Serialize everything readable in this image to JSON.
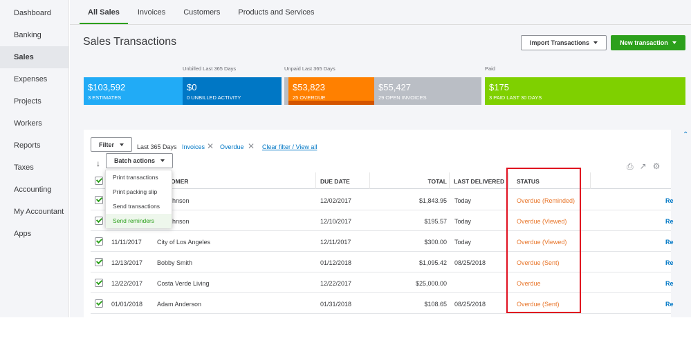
{
  "sidebar": {
    "items": [
      {
        "label": "Dashboard"
      },
      {
        "label": "Banking"
      },
      {
        "label": "Sales"
      },
      {
        "label": "Expenses"
      },
      {
        "label": "Projects"
      },
      {
        "label": "Workers"
      },
      {
        "label": "Reports"
      },
      {
        "label": "Taxes"
      },
      {
        "label": "Accounting"
      },
      {
        "label": "My Accountant"
      },
      {
        "label": "Apps"
      }
    ],
    "active": "Sales"
  },
  "tabs": [
    {
      "label": "All Sales"
    },
    {
      "label": "Invoices"
    },
    {
      "label": "Customers"
    },
    {
      "label": "Products and Services"
    }
  ],
  "page": {
    "title": "Sales Transactions",
    "import_label": "Import Transactions",
    "new_label": "New transaction"
  },
  "money_bar": {
    "unbilled_label": "Unbilled Last 365 Days",
    "unpaid_label": "Unpaid Last 365 Days",
    "paid_label": "Paid",
    "estimates_amount": "$103,592",
    "estimates_sub": "3 ESTIMATES",
    "unbilled_amount": "$0",
    "unbilled_sub": "0 UNBILLED ACTIVITY",
    "overdue_amount": "$53,823",
    "overdue_sub": "25 OVERDUE",
    "open_amount": "$55,427",
    "open_sub": "29 OPEN INVOICES",
    "paid_amount": "$175",
    "paid_sub": "3 PAID LAST 30 DAYS",
    "colors": {
      "estimates": "#21abf6",
      "unbilled": "#0077c5",
      "overdue": "#ff8000",
      "open": "#babec5",
      "paid": "#7fd000"
    }
  },
  "filters": {
    "filter_label": "Filter",
    "range": "Last 365 Days",
    "chip_invoices": "Invoices",
    "chip_overdue": "Overdue",
    "clear_label": "Clear filter / View all"
  },
  "batch": {
    "label": "Batch actions",
    "menu": [
      {
        "label": "Print transactions"
      },
      {
        "label": "Print packing slip"
      },
      {
        "label": "Send transactions"
      },
      {
        "label": "Send reminders"
      }
    ]
  },
  "table": {
    "headers": {
      "customer": "OMER",
      "due_date": "DUE DATE",
      "total": "TOTAL",
      "last_delivered": "LAST DELIVERED",
      "status": "STATUS"
    },
    "rows": [
      {
        "date": "",
        "customer": "ohnson",
        "due": "12/02/2017",
        "total": "$1,843.95",
        "delivered": "Today",
        "status": "Overdue (Reminded)",
        "action": "Re"
      },
      {
        "date": "",
        "customer": "ohnson",
        "due": "12/10/2017",
        "total": "$195.57",
        "delivered": "Today",
        "status": "Overdue (Viewed)",
        "action": "Re"
      },
      {
        "date": "11/11/2017",
        "customer": "City of Los Angeles",
        "due": "12/11/2017",
        "total": "$300.00",
        "delivered": "Today",
        "status": "Overdue (Viewed)",
        "action": "Re"
      },
      {
        "date": "12/13/2017",
        "customer": "Bobby Smith",
        "due": "01/12/2018",
        "total": "$1,095.42",
        "delivered": "08/25/2018",
        "status": "Overdue (Sent)",
        "action": "Re"
      },
      {
        "date": "12/22/2017",
        "customer": "Costa Verde Living",
        "due": "12/22/2017",
        "total": "$25,000.00",
        "delivered": "",
        "status": "Overdue",
        "action": "Re"
      },
      {
        "date": "01/01/2018",
        "customer": "Adam Anderson",
        "due": "01/31/2018",
        "total": "$108.65",
        "delivered": "08/25/2018",
        "status": "Overdue (Sent)",
        "action": "Re"
      }
    ]
  }
}
